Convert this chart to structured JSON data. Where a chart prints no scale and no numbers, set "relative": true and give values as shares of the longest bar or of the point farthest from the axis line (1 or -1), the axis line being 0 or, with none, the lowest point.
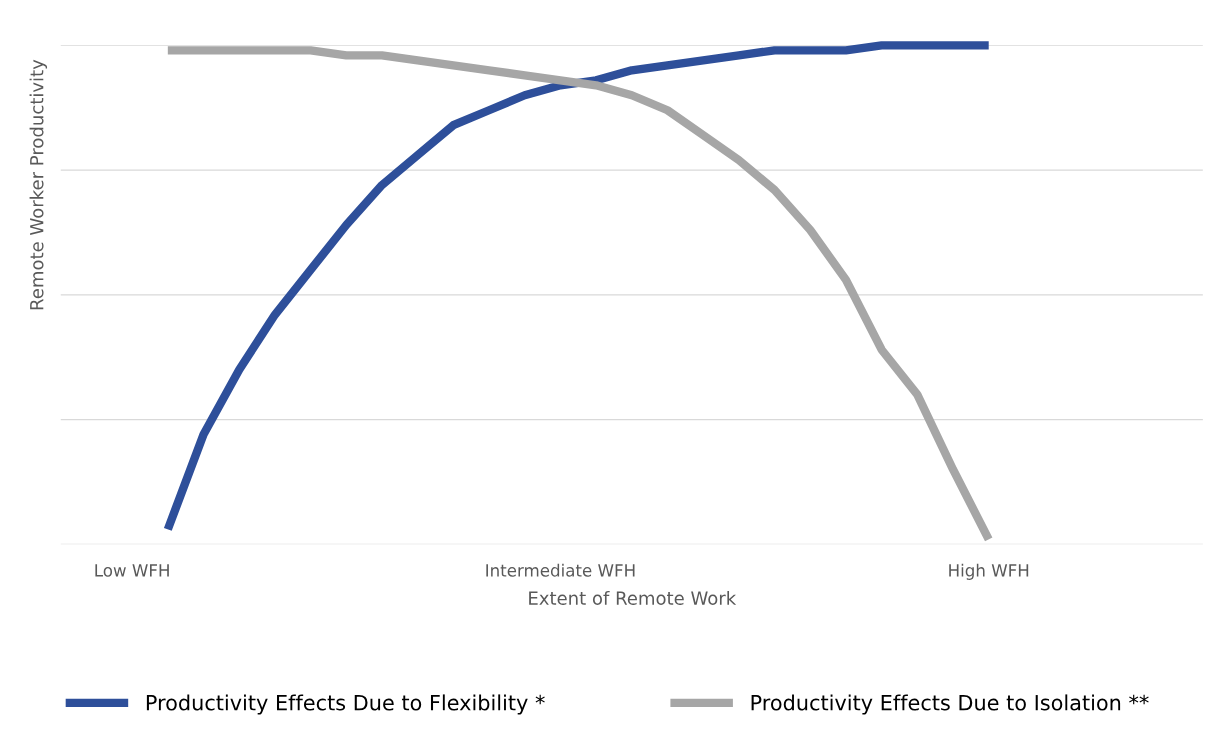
{
  "chart_data": {
    "type": "line",
    "relative": true,
    "xlabel": "Extent of Remote Work",
    "ylabel": "Remote Worker Productivity",
    "categories": [
      "Low WFH",
      null,
      null,
      null,
      null,
      null,
      null,
      null,
      null,
      null,
      null,
      null,
      "Intermediate WFH",
      null,
      null,
      null,
      null,
      null,
      null,
      null,
      null,
      null,
      null,
      null,
      "High WFH"
    ],
    "series": [
      {
        "name": "Productivity Effects Due to Flexibility *",
        "color": "#2e4f9a",
        "values": [
          null,
          0.03,
          0.22,
          0.35,
          0.46,
          0.55,
          0.64,
          0.72,
          0.78,
          0.84,
          0.87,
          0.9,
          0.92,
          0.93,
          0.95,
          0.96,
          0.97,
          0.98,
          0.99,
          0.99,
          0.99,
          1.0,
          1.0,
          1.0,
          1.0
        ]
      },
      {
        "name": "Productivity Effects Due to Isolation **",
        "color": "#a6a6a6",
        "values": [
          null,
          0.99,
          0.99,
          0.99,
          0.99,
          0.99,
          0.98,
          0.98,
          0.97,
          0.96,
          0.95,
          0.94,
          0.93,
          0.92,
          0.9,
          0.87,
          0.82,
          0.77,
          0.71,
          0.63,
          0.53,
          0.39,
          0.3,
          0.15,
          0.01
        ]
      }
    ],
    "grid": "y",
    "legend": "bottom"
  }
}
